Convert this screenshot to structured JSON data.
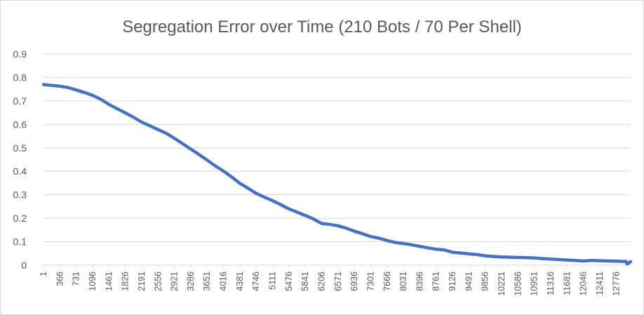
{
  "chart_data": {
    "type": "line",
    "title": "Segregation Error over Time (210 Bots / 70 Per Shell)",
    "xlabel": "",
    "ylabel": "",
    "ylim": [
      0,
      0.9
    ],
    "y_ticks": [
      "0",
      "0.1",
      "0.2",
      "0.3",
      "0.4",
      "0.5",
      "0.6",
      "0.7",
      "0.8",
      "0.9"
    ],
    "x_ticks": [
      "1",
      "366",
      "731",
      "1096",
      "1461",
      "1826",
      "2191",
      "2556",
      "2921",
      "3286",
      "3651",
      "4016",
      "4381",
      "4746",
      "5111",
      "5476",
      "5841",
      "6206",
      "6571",
      "6936",
      "7301",
      "7666",
      "8031",
      "8396",
      "8761",
      "9126",
      "9491",
      "9856",
      "10221",
      "10586",
      "10951",
      "11316",
      "11681",
      "12046",
      "12411",
      "12776"
    ],
    "x_max": 13100,
    "grid": true,
    "legend": "none",
    "series_color": "#4472c4",
    "series": [
      {
        "x": [
          1,
          183,
          366,
          548,
          731,
          913,
          1096,
          1278,
          1461,
          1643,
          1826,
          2008,
          2191,
          2373,
          2556,
          2738,
          2921,
          3103,
          3286,
          3468,
          3651,
          3833,
          4016,
          4198,
          4381,
          4563,
          4746,
          4928,
          5111,
          5293,
          5476,
          5658,
          5841,
          6023,
          6206,
          6388,
          6571,
          6753,
          6936,
          7118,
          7301,
          7483,
          7666,
          7848,
          8031,
          8213,
          8396,
          8578,
          8761,
          8943,
          9126,
          9308,
          9491,
          9673,
          9856,
          10038,
          10221,
          10403,
          10586,
          10768,
          10951,
          11133,
          11316,
          11498,
          11681,
          11863,
          12046,
          12228,
          12411,
          12593,
          12776,
          12900,
          13000,
          13020,
          13100
        ],
        "values": [
          0.77,
          0.766,
          0.763,
          0.757,
          0.747,
          0.736,
          0.724,
          0.707,
          0.685,
          0.667,
          0.649,
          0.631,
          0.61,
          0.594,
          0.578,
          0.562,
          0.541,
          0.518,
          0.495,
          0.472,
          0.448,
          0.423,
          0.401,
          0.376,
          0.349,
          0.328,
          0.306,
          0.29,
          0.275,
          0.258,
          0.24,
          0.226,
          0.212,
          0.197,
          0.178,
          0.174,
          0.168,
          0.158,
          0.145,
          0.134,
          0.122,
          0.115,
          0.105,
          0.097,
          0.092,
          0.087,
          0.08,
          0.074,
          0.068,
          0.065,
          0.055,
          0.052,
          0.048,
          0.045,
          0.04,
          0.037,
          0.035,
          0.034,
          0.033,
          0.032,
          0.031,
          0.028,
          0.026,
          0.024,
          0.022,
          0.02,
          0.018,
          0.02,
          0.019,
          0.018,
          0.017,
          0.016,
          0.016,
          0.005,
          0.015
        ]
      }
    ]
  }
}
